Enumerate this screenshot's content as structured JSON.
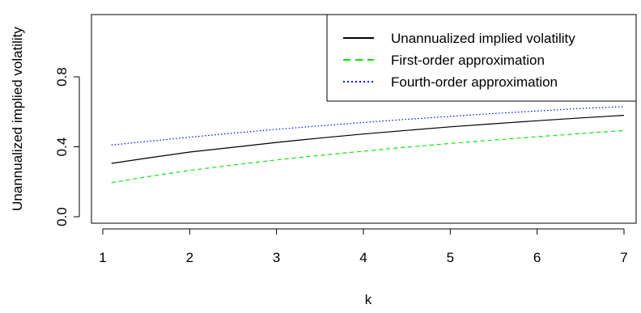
{
  "chart_data": {
    "type": "line",
    "title": "",
    "xlabel": "k",
    "ylabel": "Unannualized implied volatility",
    "xlim": [
      1,
      7
    ],
    "ylim": [
      0.0,
      1.1
    ],
    "x_ticks": [
      1,
      2,
      3,
      4,
      5,
      6,
      7
    ],
    "x_tick_labels": [
      "1",
      "2",
      "3",
      "4",
      "5",
      "6",
      "7"
    ],
    "y_ticks": [
      0.0,
      0.4,
      0.8
    ],
    "y_tick_labels": [
      "0.0",
      "0.4",
      "0.8"
    ],
    "grid": false,
    "legend_position": "top-right",
    "x": [
      1.1,
      1.5,
      2,
      2.5,
      3,
      3.5,
      4,
      4.5,
      5,
      5.5,
      6,
      6.5,
      7
    ],
    "series": [
      {
        "name": "Unannualized implied volatility",
        "color": "#000000",
        "style": "solid",
        "values": [
          0.305,
          0.335,
          0.37,
          0.397,
          0.425,
          0.45,
          0.473,
          0.494,
          0.514,
          0.532,
          0.549,
          0.565,
          0.58
        ]
      },
      {
        "name": "First-order approximation",
        "color": "#00ee00",
        "style": "dashed",
        "values": [
          0.195,
          0.228,
          0.265,
          0.296,
          0.325,
          0.351,
          0.375,
          0.398,
          0.419,
          0.439,
          0.458,
          0.476,
          0.493
        ]
      },
      {
        "name": "Fourth-order approximation",
        "color": "#0000ff",
        "style": "dotted",
        "values": [
          0.41,
          0.43,
          0.455,
          0.478,
          0.5,
          0.52,
          0.539,
          0.557,
          0.574,
          0.59,
          0.605,
          0.619,
          0.63
        ]
      }
    ]
  }
}
